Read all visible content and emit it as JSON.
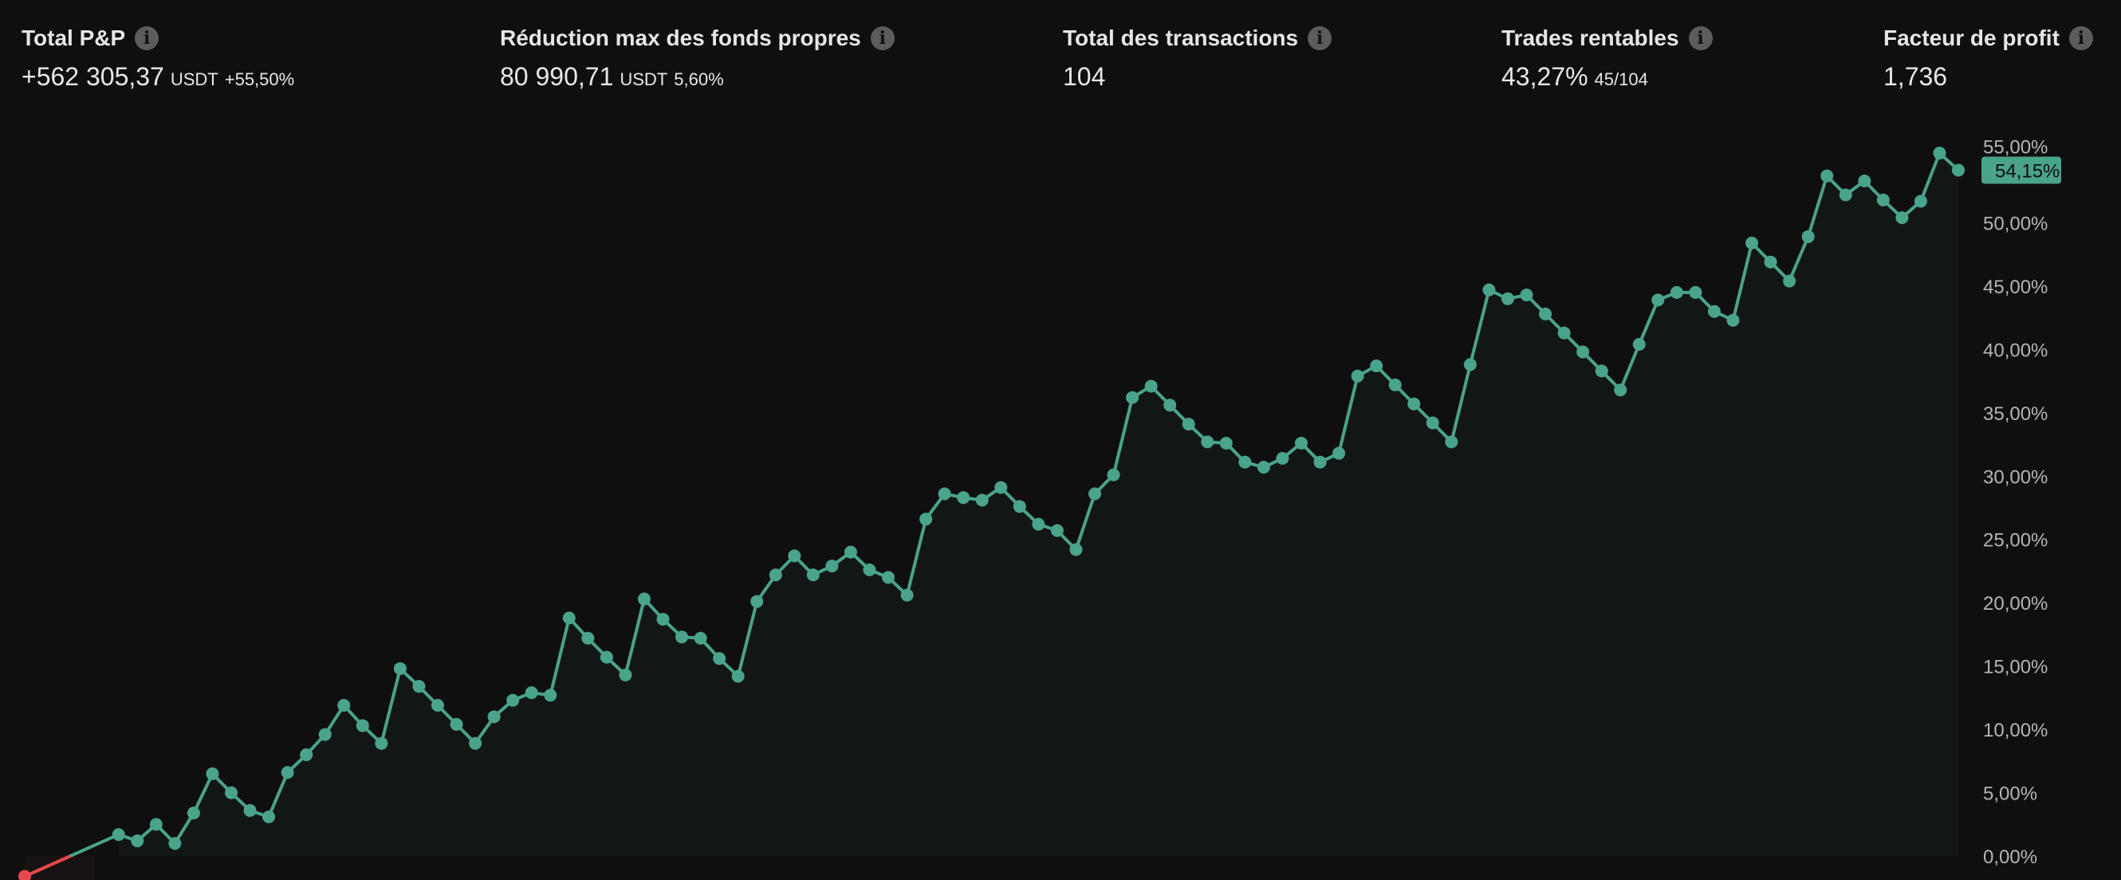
{
  "stats": [
    {
      "label": "Total P&P",
      "value": "+562 305,37",
      "unit": "USDT",
      "extra": "+55,50%",
      "positive": true
    },
    {
      "label": "Réduction max des fonds propres",
      "value": "80 990,71",
      "unit": "USDT",
      "extra": "5,60%",
      "positive": false
    },
    {
      "label": "Total des transactions",
      "value": "104",
      "unit": "",
      "extra": "",
      "positive": false
    },
    {
      "label": "Trades rentables",
      "value": "43,27%",
      "unit": "",
      "extra": "45/104",
      "positive": false
    },
    {
      "label": "Facteur de profit",
      "value": "1,736",
      "unit": "",
      "extra": "",
      "positive": false
    }
  ],
  "icons": {
    "info": "info-icon"
  },
  "colors": {
    "positive": "#4aa38b",
    "negative": "#e5484d",
    "background": "#0f0f0f",
    "area": "#121715"
  },
  "chart_data": {
    "type": "line",
    "xlabel": "",
    "ylabel": "",
    "ylim": [
      -2,
      56
    ],
    "yticks": [
      "0,00%",
      "5,00%",
      "10,00%",
      "15,00%",
      "20,00%",
      "25,00%",
      "30,00%",
      "35,00%",
      "40,00%",
      "45,00%",
      "50,00%",
      "55,00%"
    ],
    "ytick_values": [
      0,
      5,
      10,
      15,
      20,
      25,
      30,
      35,
      40,
      45,
      50,
      55
    ],
    "grid": false,
    "last_value_label": "54,15%",
    "x": [
      0,
      5,
      6,
      7,
      8,
      9,
      10,
      11,
      12,
      13,
      14,
      15,
      16,
      17,
      18,
      19,
      20,
      21,
      22,
      23,
      24,
      25,
      26,
      27,
      28,
      29,
      30,
      31,
      32,
      33,
      34,
      35,
      36,
      37,
      38,
      39,
      40,
      41,
      42,
      43,
      44,
      45,
      46,
      47,
      48,
      49,
      50,
      51,
      52,
      53,
      54,
      55,
      56,
      57,
      58,
      59,
      60,
      61,
      62,
      63,
      64,
      65,
      66,
      67,
      68,
      69,
      70,
      71,
      72,
      73,
      74,
      75,
      76,
      77,
      78,
      79,
      80,
      81,
      82,
      83,
      84,
      85,
      86,
      87,
      88,
      89,
      90,
      91,
      92,
      93,
      94,
      95,
      96,
      97,
      98,
      99,
      100,
      101,
      102,
      103
    ],
    "y": [
      -1.6,
      1.7,
      1.2,
      2.5,
      1.0,
      3.4,
      6.5,
      5.0,
      3.6,
      3.1,
      6.6,
      8.0,
      9.6,
      11.9,
      10.3,
      8.9,
      14.8,
      13.4,
      11.9,
      10.4,
      8.9,
      11.0,
      12.3,
      12.9,
      12.7,
      18.8,
      17.2,
      15.7,
      14.3,
      20.3,
      18.7,
      17.3,
      17.2,
      15.6,
      14.2,
      20.1,
      22.2,
      23.7,
      22.2,
      22.9,
      24.0,
      22.6,
      22.0,
      20.6,
      26.6,
      28.6,
      28.3,
      28.1,
      29.1,
      27.6,
      26.2,
      25.7,
      24.2,
      28.6,
      30.1,
      36.2,
      37.1,
      35.6,
      34.1,
      32.7,
      32.6,
      31.1,
      30.7,
      31.4,
      32.6,
      31.1,
      31.8,
      37.9,
      38.7,
      37.2,
      35.7,
      34.2,
      32.7,
      38.8,
      44.7,
      44.0,
      44.3,
      42.8,
      41.3,
      39.8,
      38.3,
      36.8,
      40.4,
      43.9,
      44.5,
      44.5,
      43.0,
      42.3,
      48.4,
      46.9,
      45.4,
      48.9,
      53.7,
      52.2,
      53.3,
      51.8,
      50.4,
      51.7,
      55.5,
      54.15
    ]
  }
}
